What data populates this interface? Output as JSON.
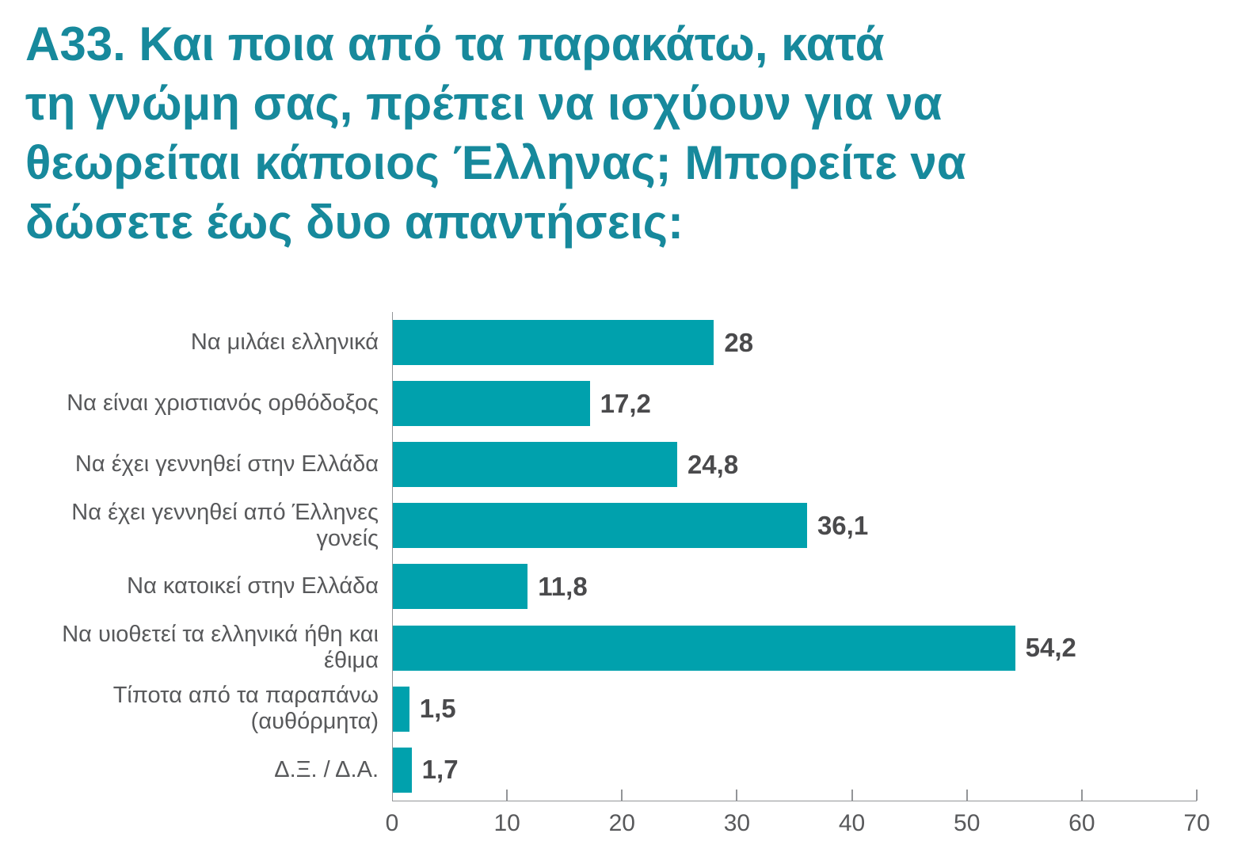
{
  "header": {
    "title_lines": [
      "Α33. Και ποια από τα παρακάτω, κατά",
      "τη γνώμη σας, πρέπει να ισχύουν για να",
      "θεωρείται κάποιος Έλληνας; Μπορείτε να",
      "δώσετε έως δυο απαντήσεις:"
    ],
    "title_color": "#17899C"
  },
  "chart_data": {
    "type": "bar",
    "orientation": "horizontal",
    "title": "Α33. Και ποια από τα παρακάτω, κατά τη γνώμη σας, πρέπει να ισχύουν για να θεωρείται κάποιος Έλληνας; Μπορείτε να δώσετε έως δυο απαντήσεις:",
    "categories": [
      "Να μιλάει ελληνικά",
      "Να είναι χριστιανός ορθόδοξος",
      "Να έχει γεννηθεί στην Ελλάδα",
      "Να έχει γεννηθεί από Έλληνες γονείς",
      "Να κατοικεί στην Ελλάδα",
      "Να υιοθετεί τα ελληνικά ήθη και έθιμα",
      "Τίποτα από τα παραπάνω (αυθόρμητα)",
      "Δ.Ξ. / Δ.Α."
    ],
    "values": [
      28,
      17.2,
      24.8,
      36.1,
      11.8,
      54.2,
      1.5,
      1.7
    ],
    "display_values": [
      "28",
      "17,2",
      "24,8",
      "36,1",
      "11,8",
      "54,2",
      "1,5",
      "1,7"
    ],
    "xlabel": "",
    "ylabel": "",
    "xlim": [
      0,
      70
    ],
    "x_ticks": [
      0,
      10,
      20,
      30,
      40,
      50,
      60,
      70
    ],
    "grid": false,
    "legend_position": "none",
    "bar_color": "#00A1AD",
    "category_label_color": "#58595B",
    "value_label_color": "#4A4A4C",
    "tick_label_color": "#58595B",
    "axis_line_color": "#939598"
  }
}
